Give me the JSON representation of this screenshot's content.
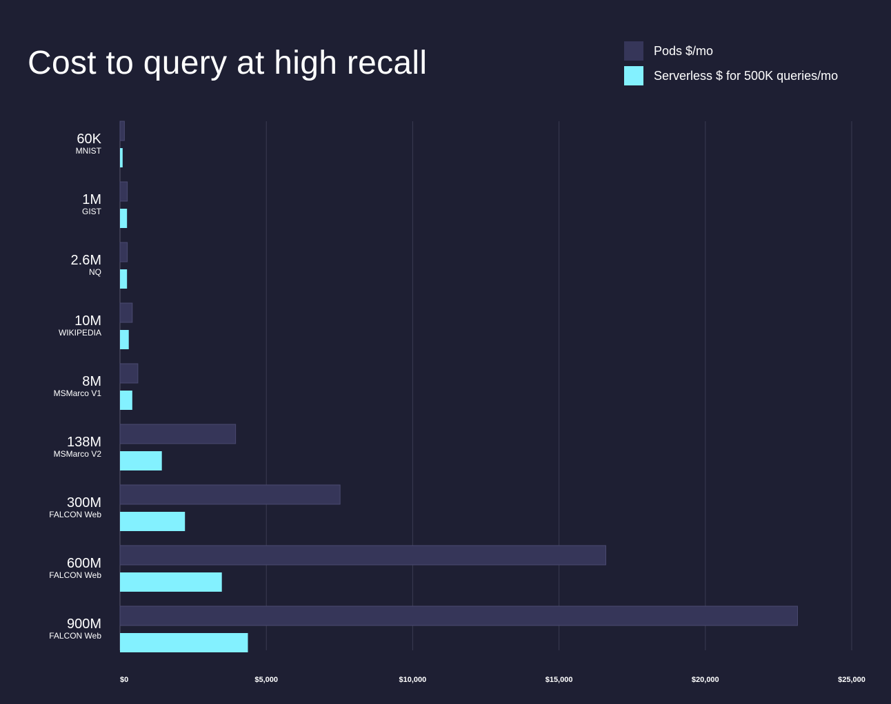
{
  "colors": {
    "background": "#1e1f33",
    "pods": "#363659",
    "pods_stroke": "#4a4a70",
    "serverless": "#83f1ff",
    "grid": "#3a3b52",
    "axis": "#55566b",
    "text": "#ffffff"
  },
  "chart_data": {
    "type": "bar",
    "orientation": "horizontal",
    "title": "Cost to query at high recall",
    "xlabel": "",
    "ylabel": "",
    "xlim": [
      0,
      25000
    ],
    "grid": true,
    "legend_position": "top-right",
    "x_ticks": [
      0,
      5000,
      10000,
      15000,
      20000,
      25000
    ],
    "x_tick_labels": [
      "$0",
      "$5,000",
      "$10,000",
      "$15,000",
      "$20,000",
      "$25,000"
    ],
    "categories": [
      {
        "size": "60K",
        "dataset": "MNIST"
      },
      {
        "size": "1M",
        "dataset": "GIST"
      },
      {
        "size": "2.6M",
        "dataset": "NQ"
      },
      {
        "size": "10M",
        "dataset": "WIKIPEDIA"
      },
      {
        "size": "8M",
        "dataset": "MSMarco V1"
      },
      {
        "size": "138M",
        "dataset": "MSMarco V2"
      },
      {
        "size": "300M",
        "dataset": "FALCON Web"
      },
      {
        "size": "600M",
        "dataset": "FALCON Web"
      },
      {
        "size": "900M",
        "dataset": "FALCON Web"
      }
    ],
    "series": [
      {
        "name": "Pods $/mo",
        "key": "pods",
        "values": [
          150,
          250,
          250,
          420,
          610,
          3950,
          7520,
          16600,
          23150
        ]
      },
      {
        "name": "Serverless $ for 500K queries/mo",
        "key": "serverless",
        "values": [
          90,
          240,
          240,
          300,
          420,
          1430,
          2220,
          3480,
          4370
        ]
      }
    ]
  }
}
